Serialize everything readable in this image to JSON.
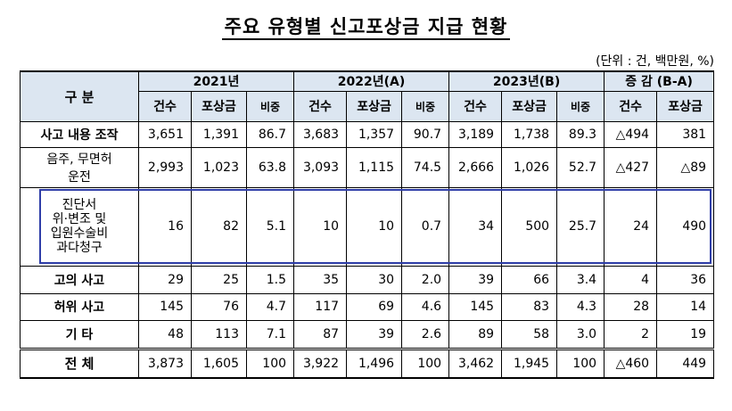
{
  "title": "주요 유형별 신고포상금 지급 현황",
  "unit_note": "(단위 : 건, 백만원, %)",
  "headers": {
    "category": "구 분",
    "years": [
      "2021년",
      "2022년(A)",
      "2023년(B)"
    ],
    "change": "증 감 (B-A)",
    "sub": [
      "건수",
      "포상금",
      "비중"
    ],
    "change_sub": [
      "건수",
      "포상금"
    ]
  },
  "rows": [
    {
      "label": "사고 내용 조작",
      "values": [
        "3,651",
        "1,391",
        "86.7",
        "3,683",
        "1,357",
        "90.7",
        "3,189",
        "1,738",
        "89.3",
        "△494",
        "381"
      ]
    },
    {
      "label": "음주, 무면허 운전",
      "label_lines": [
        "음주, 무면허",
        "운전"
      ],
      "values": [
        "2,993",
        "1,023",
        "63.8",
        "3,093",
        "1,115",
        "74.5",
        "2,666",
        "1,026",
        "52.7",
        "△427",
        "△89"
      ]
    },
    {
      "label": "진단서 위·변조 및 입원수술비 과다청구",
      "label_lines": [
        "진단서",
        "위·변조 및",
        "입원수술비",
        "과다청구"
      ],
      "values": [
        "16",
        "82",
        "5.1",
        "10",
        "10",
        "0.7",
        "34",
        "500",
        "25.7",
        "24",
        "490"
      ]
    },
    {
      "label": "고의 사고",
      "values": [
        "29",
        "25",
        "1.5",
        "35",
        "30",
        "2.0",
        "39",
        "66",
        "3.4",
        "4",
        "36"
      ]
    },
    {
      "label": "허위 사고",
      "values": [
        "145",
        "76",
        "4.7",
        "117",
        "69",
        "4.6",
        "145",
        "83",
        "4.3",
        "28",
        "14"
      ]
    },
    {
      "label": "기 타",
      "values": [
        "48",
        "113",
        "7.1",
        "87",
        "39",
        "2.6",
        "89",
        "58",
        "3.0",
        "2",
        "19"
      ]
    },
    {
      "label": "전 체",
      "values": [
        "3,873",
        "1,605",
        "100",
        "3,922",
        "1,496",
        "100",
        "3,462",
        "1,945",
        "100",
        "△460",
        "449"
      ]
    }
  ]
}
